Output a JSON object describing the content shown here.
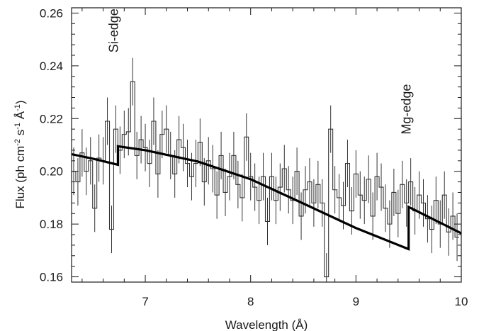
{
  "chart_data": {
    "type": "line",
    "title": "",
    "xlabel": "Wavelength (Å)",
    "ylabel_parts": {
      "a": "Flux (ph cm",
      "b": "-2",
      "c": " s",
      "d": "-1",
      "e": " Å",
      "f": "-1",
      "g": ")"
    },
    "xlim": [
      6.3,
      10.0
    ],
    "ylim": [
      0.158,
      0.262
    ],
    "x_ticks": [
      7,
      8,
      9,
      10
    ],
    "x_tick_labels": [
      "7",
      "8",
      "9",
      "10"
    ],
    "y_ticks": [
      0.16,
      0.18,
      0.2,
      0.22,
      0.24,
      0.26
    ],
    "y_tick_labels": [
      "0.16",
      "0.18",
      "0.20",
      "0.22",
      "0.24",
      "0.26"
    ],
    "grid": false,
    "annotations": [
      {
        "text": "Si-edge",
        "x": 6.7,
        "y": 0.245
      },
      {
        "text": "Mg-edge",
        "x": 9.48,
        "y": 0.214
      }
    ],
    "series": [
      {
        "style": "step-with-error-bars",
        "color": "#333333",
        "x": [
          6.32,
          6.36,
          6.4,
          6.44,
          6.48,
          6.52,
          6.56,
          6.6,
          6.64,
          6.68,
          6.72,
          6.76,
          6.8,
          6.84,
          6.88,
          6.92,
          6.96,
          7.0,
          7.04,
          7.08,
          7.12,
          7.16,
          7.2,
          7.24,
          7.28,
          7.32,
          7.36,
          7.4,
          7.44,
          7.48,
          7.52,
          7.56,
          7.6,
          7.64,
          7.68,
          7.72,
          7.76,
          7.8,
          7.84,
          7.88,
          7.92,
          7.96,
          8.0,
          8.04,
          8.08,
          8.12,
          8.16,
          8.2,
          8.24,
          8.28,
          8.32,
          8.36,
          8.4,
          8.44,
          8.48,
          8.52,
          8.56,
          8.6,
          8.64,
          8.68,
          8.72,
          8.76,
          8.8,
          8.84,
          8.88,
          8.92,
          8.96,
          9.0,
          9.04,
          9.08,
          9.12,
          9.16,
          9.2,
          9.24,
          9.28,
          9.32,
          9.36,
          9.4,
          9.44,
          9.48,
          9.52,
          9.56,
          9.6,
          9.64,
          9.68,
          9.72,
          9.76,
          9.8,
          9.84,
          9.88,
          9.92,
          9.96
        ],
        "y": [
          0.2,
          0.196,
          0.207,
          0.2,
          0.204,
          0.186,
          0.205,
          0.204,
          0.219,
          0.178,
          0.216,
          0.208,
          0.214,
          0.215,
          0.234,
          0.206,
          0.212,
          0.209,
          0.203,
          0.219,
          0.199,
          0.214,
          0.216,
          0.206,
          0.199,
          0.212,
          0.209,
          0.203,
          0.198,
          0.203,
          0.211,
          0.196,
          0.204,
          0.201,
          0.191,
          0.206,
          0.192,
          0.198,
          0.206,
          0.195,
          0.19,
          0.213,
          0.198,
          0.194,
          0.189,
          0.198,
          0.181,
          0.198,
          0.189,
          0.194,
          0.201,
          0.193,
          0.189,
          0.2,
          0.183,
          0.193,
          0.196,
          0.188,
          0.195,
          0.188,
          0.16,
          0.216,
          0.193,
          0.19,
          0.187,
          0.203,
          0.185,
          0.199,
          0.191,
          0.189,
          0.197,
          0.183,
          0.198,
          0.194,
          0.186,
          0.18,
          0.192,
          0.184,
          0.195,
          0.188,
          0.196,
          0.185,
          0.191,
          0.188,
          0.182,
          0.178,
          0.189,
          0.18,
          0.191,
          0.177,
          0.183,
          0.175
        ],
        "err": [
          0.009,
          0.009,
          0.009,
          0.009,
          0.009,
          0.009,
          0.009,
          0.009,
          0.009,
          0.009,
          0.009,
          0.009,
          0.009,
          0.009,
          0.009,
          0.009,
          0.009,
          0.009,
          0.009,
          0.009,
          0.009,
          0.009,
          0.009,
          0.009,
          0.009,
          0.009,
          0.009,
          0.009,
          0.009,
          0.009,
          0.009,
          0.009,
          0.009,
          0.009,
          0.009,
          0.009,
          0.009,
          0.009,
          0.009,
          0.009,
          0.009,
          0.009,
          0.009,
          0.009,
          0.009,
          0.009,
          0.009,
          0.009,
          0.009,
          0.009,
          0.009,
          0.009,
          0.009,
          0.009,
          0.009,
          0.009,
          0.009,
          0.009,
          0.009,
          0.009,
          0.009,
          0.009,
          0.009,
          0.009,
          0.009,
          0.009,
          0.009,
          0.009,
          0.009,
          0.009,
          0.009,
          0.009,
          0.009,
          0.009,
          0.009,
          0.009,
          0.009,
          0.009,
          0.009,
          0.009,
          0.009,
          0.009,
          0.009,
          0.009,
          0.009,
          0.009,
          0.009,
          0.009,
          0.009,
          0.009,
          0.009,
          0.009
        ]
      },
      {
        "style": "model",
        "color": "#000000",
        "x": [
          6.3,
          6.5,
          6.74,
          6.74,
          7.0,
          7.5,
          8.0,
          8.5,
          9.0,
          9.5,
          9.5,
          9.75,
          10.0
        ],
        "y": [
          0.2065,
          0.2048,
          0.2025,
          0.2095,
          0.208,
          0.2037,
          0.197,
          0.1878,
          0.1785,
          0.1705,
          0.1865,
          0.1815,
          0.1765
        ]
      }
    ]
  }
}
